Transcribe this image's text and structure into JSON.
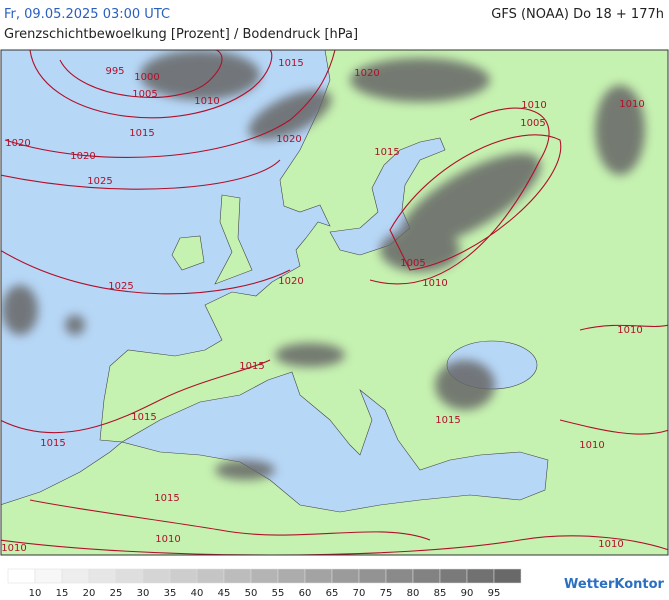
{
  "header": {
    "datetime": "Fr, 09.05.2025 03:00 UTC",
    "model": "GFS (NOAA) Do 18 + 177h",
    "subtitle": "Grenzschichtbewoelkung [Prozent] / Bodendruck [hPa]"
  },
  "isobar_labels": [
    995,
    1000,
    1005,
    1010,
    1015,
    1020,
    1010,
    1005,
    1010,
    1015,
    1020,
    1015,
    1020,
    1020,
    1025,
    1025,
    1020,
    1005,
    1010,
    1010,
    1015,
    1015,
    1015,
    1015,
    1010,
    1015,
    1010,
    1010,
    1010
  ],
  "legend": {
    "labels": [
      10,
      15,
      20,
      25,
      30,
      35,
      40,
      45,
      50,
      55,
      60,
      65,
      70,
      75,
      80,
      85,
      90,
      95
    ]
  },
  "logo": "WetterKontor"
}
